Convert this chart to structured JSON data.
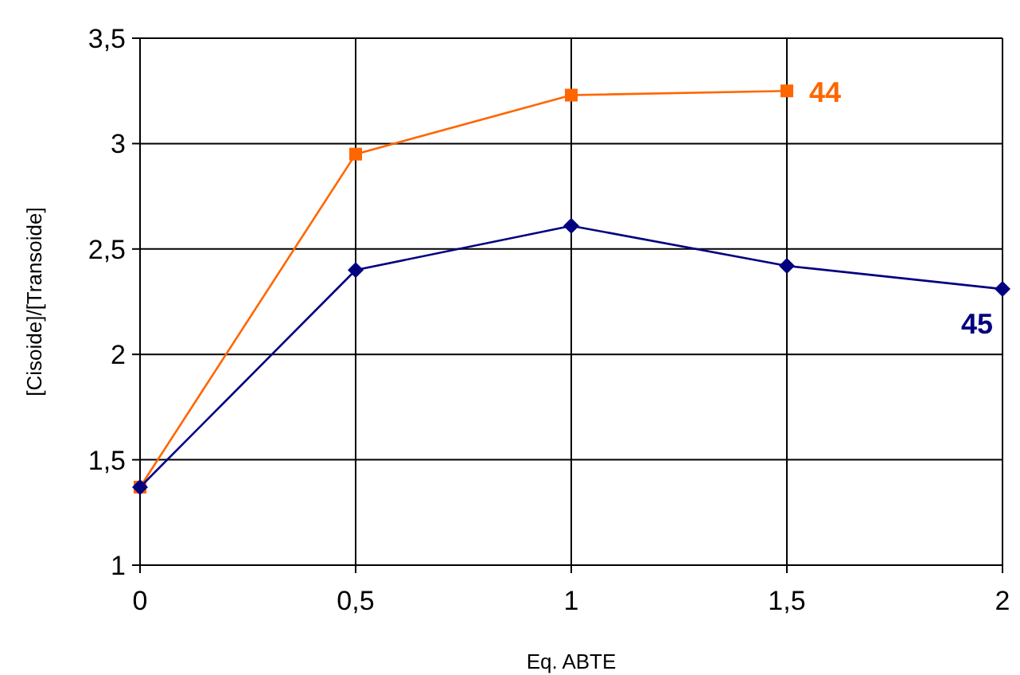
{
  "chart_data": {
    "type": "line",
    "xlabel": "Eq. ABTE",
    "ylabel": "[Cisoide]/[Transoide]",
    "x": [
      0,
      0.5,
      1,
      1.5,
      2
    ],
    "series": [
      {
        "name": "44",
        "color": "#ff6600",
        "marker": "square",
        "x": [
          0,
          0.5,
          1,
          1.5
        ],
        "values": [
          1.37,
          2.95,
          3.23,
          3.25
        ]
      },
      {
        "name": "45",
        "color": "#000080",
        "marker": "diamond",
        "values": [
          1.37,
          2.4,
          2.61,
          2.42,
          2.31
        ]
      }
    ],
    "xlim": [
      0,
      2
    ],
    "xticks": [
      0,
      {
        "value": 0.5,
        "label": "0,5"
      },
      1,
      {
        "value": 1.5,
        "label": "1,5"
      },
      2
    ],
    "ylim": [
      1,
      3.5
    ],
    "yticks": [
      1,
      {
        "value": 1.5,
        "label": "1,5"
      },
      2,
      {
        "value": 2.5,
        "label": "2,5"
      },
      3,
      {
        "value": 3.5,
        "label": "3,5"
      }
    ],
    "grid": true,
    "line_style": "solid"
  }
}
